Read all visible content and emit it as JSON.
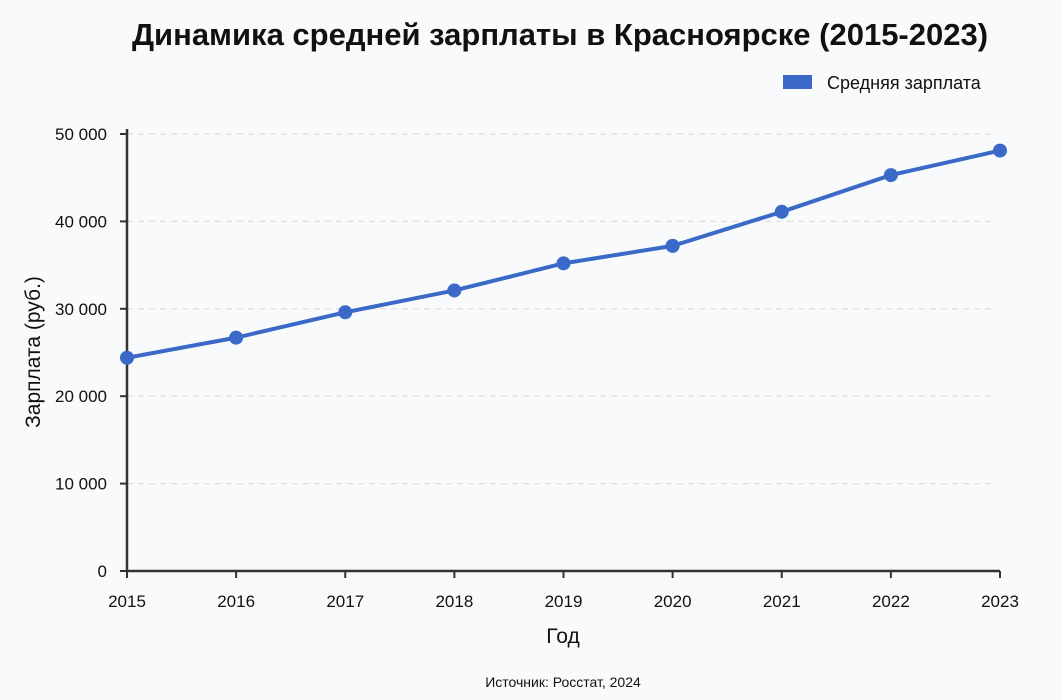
{
  "chart_data": {
    "type": "line",
    "title": "Динамика средней зарплаты в Красноярске (2015-2023)",
    "xlabel": "Год",
    "ylabel": "Зарплата (руб.)",
    "source": "Источник: Росстат, 2024",
    "categories": [
      "2015",
      "2016",
      "2017",
      "2018",
      "2019",
      "2020",
      "2021",
      "2022",
      "2023"
    ],
    "series": [
      {
        "name": "Средняя зарплата",
        "color": "#3b69c7",
        "values": [
          24400,
          26700,
          29600,
          32100,
          35200,
          37200,
          41100,
          45300,
          48100
        ]
      }
    ],
    "ylim": [
      0,
      50000
    ],
    "yticks": [
      0,
      10000,
      20000,
      30000,
      40000,
      50000
    ],
    "ytick_labels": [
      "0",
      "10 000",
      "20 000",
      "30 000",
      "40 000",
      "50 000"
    ],
    "grid": "horizontal-dashed",
    "legend_position": "top-right"
  }
}
